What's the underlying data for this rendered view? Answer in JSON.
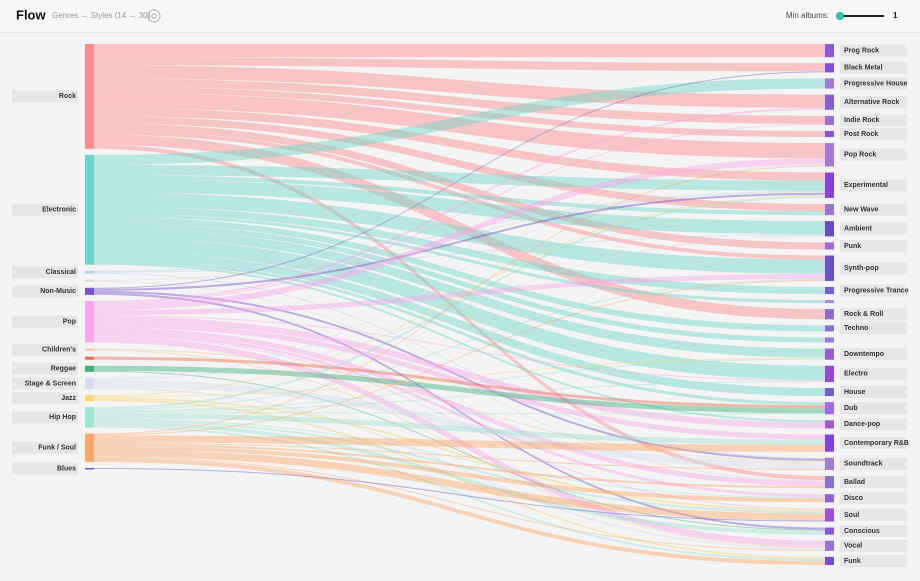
{
  "header": {
    "title": "Flow",
    "subtitle": "Genres → Styles (14 → 30)",
    "min_albums_label": "Min albums:",
    "min_albums": 1
  },
  "chart_data": {
    "type": "sankey",
    "sources": [
      "Rock",
      "Electronic",
      "Classical",
      null,
      "Non-Music",
      "Pop",
      "Children's",
      null,
      "Reggae",
      "Stage & Screen",
      "Jazz",
      "Hip Hop",
      "Funk / Soul",
      "Blues"
    ],
    "source_colors": [
      "#fb8c8c",
      "#6fd4c8",
      "#b9d3ee",
      "#d8d8d8",
      "#7a55c9",
      "#fba6ea",
      "#f6c59a",
      "#e8704f",
      "#3fb07a",
      "#d6dded",
      "#f9d775",
      "#9fe3d3",
      "#fba86a",
      "#6a5acd"
    ],
    "targets": [
      "Prog Rock",
      "Black Metal",
      "Progressive House",
      "Alternative Rock",
      "Indie Rock",
      "Post Rock",
      "Pop Rock",
      "Experimental",
      "New Wave",
      "Ambient",
      "Punk",
      "Synth-pop",
      "Progressive Trance",
      null,
      "Rock & Roll",
      "Techno",
      null,
      "Downtempo",
      "Electro",
      "House",
      "Dub",
      "Dance-pop",
      "Contemporary R&B",
      "Soundtrack",
      "Ballad",
      "Disco",
      "Soul",
      "Conscious",
      "Vocal",
      "Funk"
    ],
    "target_colors": [
      "#8a58d8",
      "#7f4fe0",
      "#a07ad8",
      "#8460d4",
      "#9c6ee0",
      "#8c52e8",
      "#a47ad6",
      "#8a3fe0",
      "#9b72d6",
      "#6a48c8",
      "#a06ae0",
      "#7050c8",
      "#7a5ad8",
      "#a58ae0",
      "#8c6ad0",
      "#8a6ee0",
      "#9a7ae0",
      "#9a5ad8",
      "#9a4ad8",
      "#7a5ad8",
      "#a46ae8",
      "#a05ad0",
      "#8440e0",
      "#a47ad6",
      "#8a70d0",
      "#9060d8",
      "#a050e0",
      "#8a58d8",
      "#9a72e0",
      "#7a48d8"
    ],
    "links": [
      [
        0,
        0,
        13
      ],
      [
        0,
        1,
        8
      ],
      [
        0,
        3,
        13
      ],
      [
        0,
        4,
        8
      ],
      [
        0,
        5,
        6
      ],
      [
        0,
        6,
        15
      ],
      [
        0,
        7,
        8
      ],
      [
        0,
        8,
        7
      ],
      [
        0,
        10,
        7
      ],
      [
        0,
        11,
        4
      ],
      [
        0,
        14,
        10
      ],
      [
        0,
        24,
        4
      ],
      [
        1,
        2,
        10
      ],
      [
        1,
        7,
        10
      ],
      [
        1,
        8,
        4
      ],
      [
        1,
        9,
        13
      ],
      [
        1,
        11,
        14
      ],
      [
        1,
        12,
        7
      ],
      [
        1,
        13,
        3
      ],
      [
        1,
        15,
        6
      ],
      [
        1,
        16,
        5
      ],
      [
        1,
        17,
        9
      ],
      [
        1,
        18,
        14
      ],
      [
        1,
        19,
        8
      ],
      [
        1,
        20,
        3
      ],
      [
        1,
        21,
        2
      ],
      [
        2,
        7,
        1
      ],
      [
        2,
        9,
        1
      ],
      [
        2,
        23,
        1
      ],
      [
        3,
        7,
        1
      ],
      [
        3,
        24,
        1
      ],
      [
        4,
        1,
        1
      ],
      [
        4,
        7,
        2
      ],
      [
        4,
        23,
        2
      ],
      [
        4,
        27,
        2
      ],
      [
        5,
        3,
        2
      ],
      [
        5,
        4,
        1
      ],
      [
        5,
        6,
        6
      ],
      [
        5,
        11,
        5
      ],
      [
        5,
        18,
        1
      ],
      [
        5,
        21,
        6
      ],
      [
        5,
        22,
        5
      ],
      [
        5,
        24,
        5
      ],
      [
        5,
        25,
        3
      ],
      [
        5,
        26,
        1
      ],
      [
        5,
        28,
        6
      ],
      [
        6,
        23,
        1
      ],
      [
        6,
        28,
        1
      ],
      [
        7,
        20,
        3
      ],
      [
        8,
        20,
        5
      ],
      [
        8,
        27,
        1
      ],
      [
        9,
        6,
        1
      ],
      [
        9,
        9,
        1
      ],
      [
        9,
        23,
        7
      ],
      [
        9,
        28,
        2
      ],
      [
        10,
        7,
        1
      ],
      [
        10,
        17,
        1
      ],
      [
        10,
        26,
        2
      ],
      [
        10,
        29,
        2
      ],
      [
        11,
        7,
        2
      ],
      [
        11,
        11,
        1
      ],
      [
        11,
        17,
        1
      ],
      [
        11,
        18,
        1
      ],
      [
        11,
        20,
        1
      ],
      [
        11,
        22,
        5
      ],
      [
        11,
        25,
        1
      ],
      [
        11,
        26,
        2
      ],
      [
        11,
        27,
        4
      ],
      [
        11,
        29,
        2
      ],
      [
        12,
        6,
        1
      ],
      [
        12,
        11,
        1
      ],
      [
        12,
        22,
        7
      ],
      [
        12,
        23,
        1
      ],
      [
        12,
        24,
        2
      ],
      [
        12,
        25,
        4
      ],
      [
        12,
        26,
        7
      ],
      [
        12,
        28,
        1
      ],
      [
        12,
        29,
        4
      ],
      [
        13,
        26,
        1
      ]
    ]
  }
}
